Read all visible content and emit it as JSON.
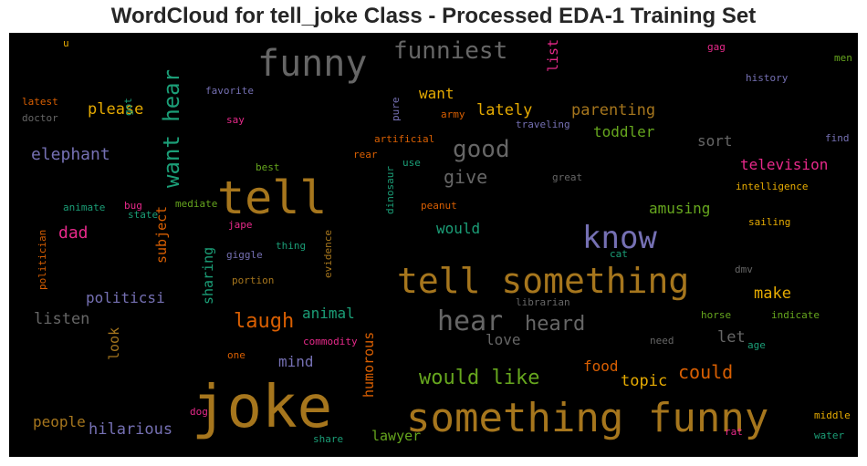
{
  "chart_data": {
    "type": "wordcloud",
    "title": "WordCloud for tell_joke Class - Processed EDA-1 Training Set",
    "background": "#000000",
    "palette": [
      "#B8801F",
      "#6E6E6E",
      "#1E9E77",
      "#7570B3",
      "#E7298A",
      "#D95F02",
      "#66A61E",
      "#E6AB02",
      "#A6761D"
    ],
    "words": [
      {
        "text": "joke",
        "weight": 100,
        "color": "#A6761D"
      },
      {
        "text": "something funny",
        "weight": 68,
        "color": "#A6761D"
      },
      {
        "text": "tell something",
        "weight": 62,
        "color": "#A6761D"
      },
      {
        "text": "tell",
        "weight": 70,
        "color": "#A6761D"
      },
      {
        "text": "funny",
        "weight": 60,
        "color": "#666666"
      },
      {
        "text": "know",
        "weight": 52,
        "color": "#7570B3"
      },
      {
        "text": "want hear",
        "weight": 50,
        "color": "#1B9E77"
      },
      {
        "text": "hear",
        "weight": 44,
        "color": "#666666"
      },
      {
        "text": "funniest",
        "weight": 38,
        "color": "#666666"
      },
      {
        "text": "good",
        "weight": 36,
        "color": "#666666"
      },
      {
        "text": "would like",
        "weight": 34,
        "color": "#66A61E"
      },
      {
        "text": "laugh",
        "weight": 32,
        "color": "#D95F02"
      },
      {
        "text": "heard",
        "weight": 30,
        "color": "#666666"
      },
      {
        "text": "give",
        "weight": 30,
        "color": "#666666"
      },
      {
        "text": "could",
        "weight": 28,
        "color": "#D95F02"
      },
      {
        "text": "hilarious",
        "weight": 26,
        "color": "#7570B3"
      },
      {
        "text": "elephant",
        "weight": 26,
        "color": "#7570B3"
      },
      {
        "text": "parenting",
        "weight": 26,
        "color": "#A6761D"
      },
      {
        "text": "please",
        "weight": 26,
        "color": "#E6AB02"
      },
      {
        "text": "lately",
        "weight": 26,
        "color": "#E6AB02"
      },
      {
        "text": "dad",
        "weight": 26,
        "color": "#E7298A"
      },
      {
        "text": "listen",
        "weight": 26,
        "color": "#666666"
      },
      {
        "text": "humorous",
        "weight": 24,
        "color": "#D95F02"
      },
      {
        "text": "topic",
        "weight": 26,
        "color": "#E6AB02"
      },
      {
        "text": "make",
        "weight": 26,
        "color": "#E6AB02"
      },
      {
        "text": "let",
        "weight": 26,
        "color": "#666666"
      },
      {
        "text": "food",
        "weight": 24,
        "color": "#D95F02"
      },
      {
        "text": "would",
        "weight": 24,
        "color": "#1B9E77"
      },
      {
        "text": "amusing",
        "weight": 24,
        "color": "#66A61E"
      },
      {
        "text": "television",
        "weight": 24,
        "color": "#E7298A"
      },
      {
        "text": "toddler",
        "weight": 24,
        "color": "#66A61E"
      },
      {
        "text": "want",
        "weight": 24,
        "color": "#E6AB02"
      },
      {
        "text": "sort",
        "weight": 24,
        "color": "#666666"
      },
      {
        "text": "politicsi",
        "weight": 24,
        "color": "#7570B3"
      },
      {
        "text": "people",
        "weight": 24,
        "color": "#A6761D"
      },
      {
        "text": "love",
        "weight": 24,
        "color": "#666666"
      },
      {
        "text": "animal",
        "weight": 24,
        "color": "#1B9E77"
      },
      {
        "text": "mind",
        "weight": 24,
        "color": "#7570B3"
      },
      {
        "text": "lawyer",
        "weight": 22,
        "color": "#66A61E"
      },
      {
        "text": "subject",
        "weight": 22,
        "color": "#D95F02"
      },
      {
        "text": "sharing",
        "weight": 22,
        "color": "#1B9E77"
      },
      {
        "text": "look",
        "weight": 22,
        "color": "#A6761D"
      },
      {
        "text": "list",
        "weight": 22,
        "color": "#E7298A"
      },
      {
        "text": "intelligence",
        "weight": 14,
        "color": "#E6AB02"
      },
      {
        "text": "sailing",
        "weight": 14,
        "color": "#E6AB02"
      },
      {
        "text": "history",
        "weight": 14,
        "color": "#7570B3"
      },
      {
        "text": "librarian",
        "weight": 14,
        "color": "#666666"
      },
      {
        "text": "traveling",
        "weight": 14,
        "color": "#7570B3"
      },
      {
        "text": "artificial",
        "weight": 14,
        "color": "#D95F02"
      },
      {
        "text": "favorite",
        "weight": 14,
        "color": "#7570B3"
      },
      {
        "text": "commodity",
        "weight": 14,
        "color": "#E7298A"
      },
      {
        "text": "portion",
        "weight": 14,
        "color": "#A6761D"
      },
      {
        "text": "politician",
        "weight": 14,
        "color": "#D95F02"
      },
      {
        "text": "dinosaur",
        "weight": 14,
        "color": "#1B9E77"
      },
      {
        "text": "evidence",
        "weight": 14,
        "color": "#A6761D"
      },
      {
        "text": "indicate",
        "weight": 14,
        "color": "#66A61E"
      },
      {
        "text": "mediate",
        "weight": 14,
        "color": "#66A61E"
      },
      {
        "text": "animate",
        "weight": 14,
        "color": "#1B9E77"
      },
      {
        "text": "giggle",
        "weight": 14,
        "color": "#7570B3"
      },
      {
        "text": "peanut",
        "weight": 14,
        "color": "#D95F02"
      },
      {
        "text": "latest",
        "weight": 14,
        "color": "#D95F02"
      },
      {
        "text": "doctor",
        "weight": 14,
        "color": "#666666"
      },
      {
        "text": "middle",
        "weight": 14,
        "color": "#E6AB02"
      },
      {
        "text": "water",
        "weight": 14,
        "color": "#1B9E77"
      },
      {
        "text": "horse",
        "weight": 14,
        "color": "#66A61E"
      },
      {
        "text": "great",
        "weight": 14,
        "color": "#666666"
      },
      {
        "text": "state",
        "weight": 14,
        "color": "#1B9E77"
      },
      {
        "text": "thing",
        "weight": 14,
        "color": "#1B9E77"
      },
      {
        "text": "share",
        "weight": 14,
        "color": "#1B9E77"
      },
      {
        "text": "army",
        "weight": 14,
        "color": "#D95F02"
      },
      {
        "text": "best",
        "weight": 14,
        "color": "#66A61E"
      },
      {
        "text": "find",
        "weight": 14,
        "color": "#7570B3"
      },
      {
        "text": "need",
        "weight": 14,
        "color": "#666666"
      },
      {
        "text": "jape",
        "weight": 14,
        "color": "#E7298A"
      },
      {
        "text": "rear",
        "weight": 14,
        "color": "#D95F02"
      },
      {
        "text": "pure",
        "weight": 14,
        "color": "#7570B3"
      },
      {
        "text": "use",
        "weight": 14,
        "color": "#1B9E77"
      },
      {
        "text": "say",
        "weight": 14,
        "color": "#E7298A"
      },
      {
        "text": "got",
        "weight": 14,
        "color": "#1B9E77"
      },
      {
        "text": "bug",
        "weight": 14,
        "color": "#E7298A"
      },
      {
        "text": "cat",
        "weight": 14,
        "color": "#1B9E77"
      },
      {
        "text": "dmv",
        "weight": 14,
        "color": "#666666"
      },
      {
        "text": "age",
        "weight": 14,
        "color": "#1B9E77"
      },
      {
        "text": "one",
        "weight": 14,
        "color": "#D95F02"
      },
      {
        "text": "dog",
        "weight": 14,
        "color": "#E7298A"
      },
      {
        "text": "rat",
        "weight": 14,
        "color": "#E7298A"
      },
      {
        "text": "gag",
        "weight": 14,
        "color": "#E7298A"
      },
      {
        "text": "men",
        "weight": 14,
        "color": "#66A61E"
      },
      {
        "text": "u",
        "weight": 14,
        "color": "#E6AB02"
      }
    ]
  }
}
